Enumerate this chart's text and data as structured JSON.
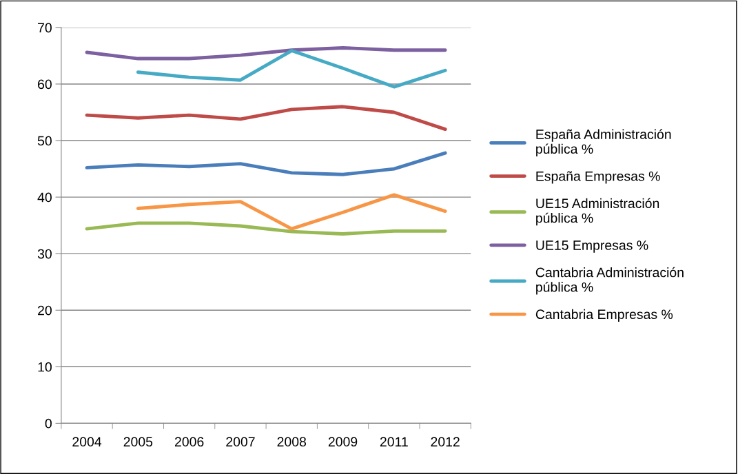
{
  "chart_data": {
    "type": "line",
    "categories": [
      "2004",
      "2005",
      "2006",
      "2007",
      "2008",
      "2009",
      "2011",
      "2012"
    ],
    "ylim": [
      0,
      70
    ],
    "yticks": [
      0,
      10,
      20,
      30,
      40,
      50,
      60,
      70
    ],
    "grid": "y",
    "legend": "right",
    "marker": "none",
    "line_style": "solid",
    "series": [
      {
        "name": "España Administración\npública %",
        "color": "#4a7ebb",
        "values": [
          45.2,
          45.7,
          45.4,
          45.9,
          44.3,
          44.0,
          45.0,
          47.8
        ]
      },
      {
        "name": "España Empresas %",
        "color": "#be4b48",
        "values": [
          54.5,
          54.0,
          54.5,
          53.8,
          55.5,
          56.0,
          55.0,
          52.0
        ]
      },
      {
        "name": "UE15 Administración\npública %",
        "color": "#98b954",
        "values": [
          34.4,
          35.4,
          35.4,
          34.9,
          33.9,
          33.5,
          34.0,
          34.0
        ]
      },
      {
        "name": "UE15 Empresas %",
        "color": "#7d60a0",
        "values": [
          65.6,
          64.5,
          64.5,
          65.1,
          66.0,
          66.4,
          66.0,
          66.0
        ]
      },
      {
        "name": "Cantabria Administración\npública %",
        "color": "#46aac5",
        "values": [
          null,
          62.1,
          61.2,
          60.7,
          65.9,
          62.8,
          59.5,
          62.4
        ]
      },
      {
        "name": "Cantabria Empresas %",
        "color": "#f79646",
        "values": [
          null,
          38.0,
          38.7,
          39.2,
          34.4,
          37.3,
          40.4,
          37.5
        ]
      }
    ]
  }
}
